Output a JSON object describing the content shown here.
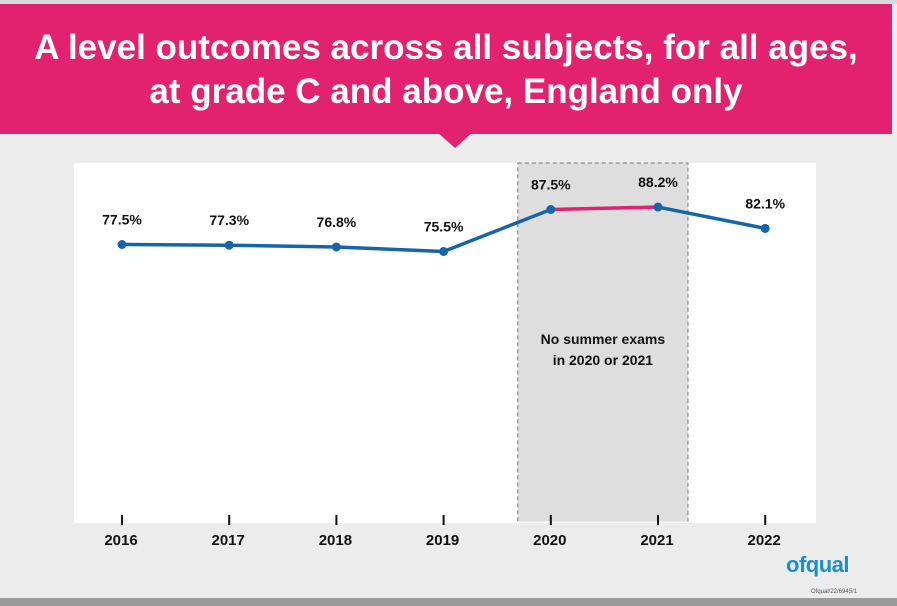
{
  "title": {
    "line1": "A level outcomes across all subjects, for all ages,",
    "line2": "at grade C and above, England only"
  },
  "chart_data": {
    "type": "line",
    "title": "A level outcomes across all subjects, for all ages, at grade C and above, England only",
    "x": [
      "2016",
      "2017",
      "2018",
      "2019",
      "2020",
      "2021",
      "2022"
    ],
    "series": [
      {
        "values": [
          77.5,
          77.3,
          76.8,
          75.5,
          87.5,
          88.2,
          82.1
        ]
      }
    ],
    "data_labels": [
      "77.5%",
      "77.3%",
      "76.8%",
      "75.5%",
      "87.5%",
      "88.2%",
      "82.1%"
    ],
    "ylim": [
      0,
      100
    ],
    "grid": false,
    "shaded_region": {
      "from": "2020",
      "to": "2021",
      "note": [
        "No summer exams",
        "in 2020 or 2021"
      ]
    },
    "colors": {
      "line": "#1565a8",
      "highlight": "#e2216f",
      "shade": "#dedede"
    }
  },
  "footer": {
    "logo": "ofqual",
    "ref": "Ofqual/22/6945/1"
  }
}
